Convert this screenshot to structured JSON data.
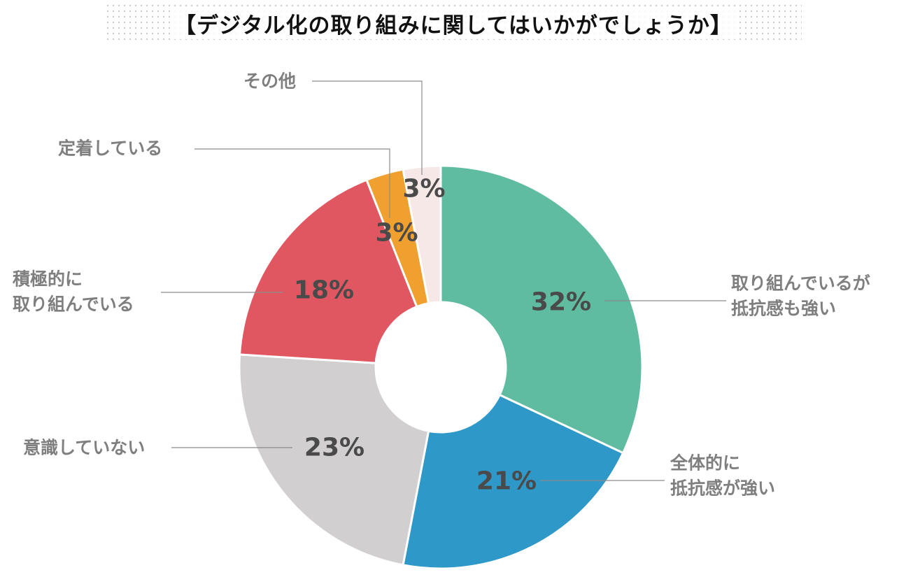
{
  "title": "【デジタル化の取り組みに関してはいかがでしょうか】",
  "chart_data": {
    "type": "pie",
    "style": "donut",
    "start_angle": "12 o'clock, clockwise",
    "slices": [
      {
        "label_lines": [
          "取り組んでいるが",
          "抵抗感も強い"
        ],
        "value": 32,
        "value_label": "32%",
        "color": "#5fbca0"
      },
      {
        "label_lines": [
          "全体的に",
          "抵抗感が強い"
        ],
        "value": 21,
        "value_label": "21%",
        "color": "#2e98c9"
      },
      {
        "label_lines": [
          "意識していない"
        ],
        "value": 23,
        "value_label": "23%",
        "color": "#d1cfcf"
      },
      {
        "label_lines": [
          "積極的に",
          "取り組んでいる"
        ],
        "value": 18,
        "value_label": "18%",
        "color": "#e05762"
      },
      {
        "label_lines": [
          "定着している"
        ],
        "value": 3,
        "value_label": "3%",
        "color": "#f0a02e"
      },
      {
        "label_lines": [
          "その他"
        ],
        "value": 3,
        "value_label": "3%",
        "color": "#f5e8e6"
      }
    ],
    "colors": {
      "value_text": "#4a4a4a",
      "category_text": "#7f7f7f",
      "leader_line": "#8c8c8c",
      "slice_border": "#ffffff"
    }
  }
}
